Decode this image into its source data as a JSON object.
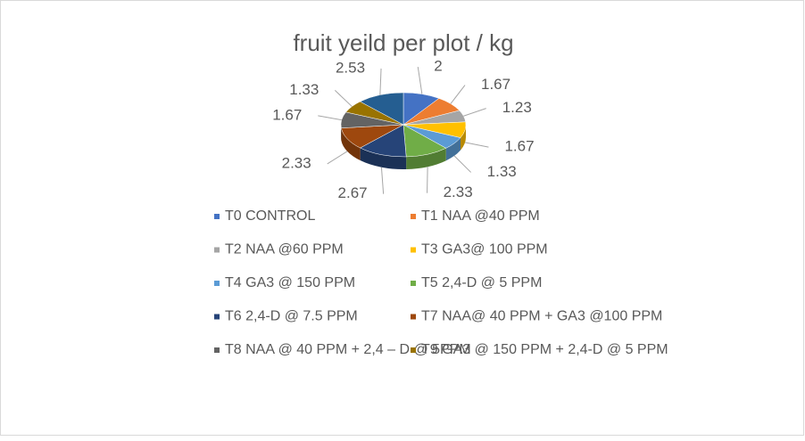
{
  "chart_data": {
    "type": "pie",
    "title": "fruit yeild per plot / kg",
    "categories": [
      "T0 CONTROL",
      "T1 NAA @40 PPM",
      "T2 NAA @60 PPM",
      "T3 GA3@ 100 PPM",
      "T4 GA3 @ 150 PPM",
      "T5 2,4-D @ 5 PPM",
      "T6 2,4-D @ 7.5 PPM",
      "T7 NAA@ 40 PPM + GA3 @100 PPM",
      "T8 NAA @ 40 PPM + 2,4 – D @ 5PPM",
      "T9 GA3 @ 150 PPM + 2,4-D @ 5 PPM",
      null
    ],
    "values": [
      2,
      1.67,
      1.23,
      1.67,
      1.33,
      2.33,
      2.67,
      2.33,
      1.67,
      1.33,
      2.53
    ],
    "colors": [
      "#4472c4",
      "#ed7d31",
      "#a5a5a5",
      "#ffc000",
      "#5b9bd5",
      "#70ad47",
      "#264478",
      "#9e480e",
      "#636363",
      "#997300",
      "#255e91"
    ],
    "legend": "bottom"
  }
}
